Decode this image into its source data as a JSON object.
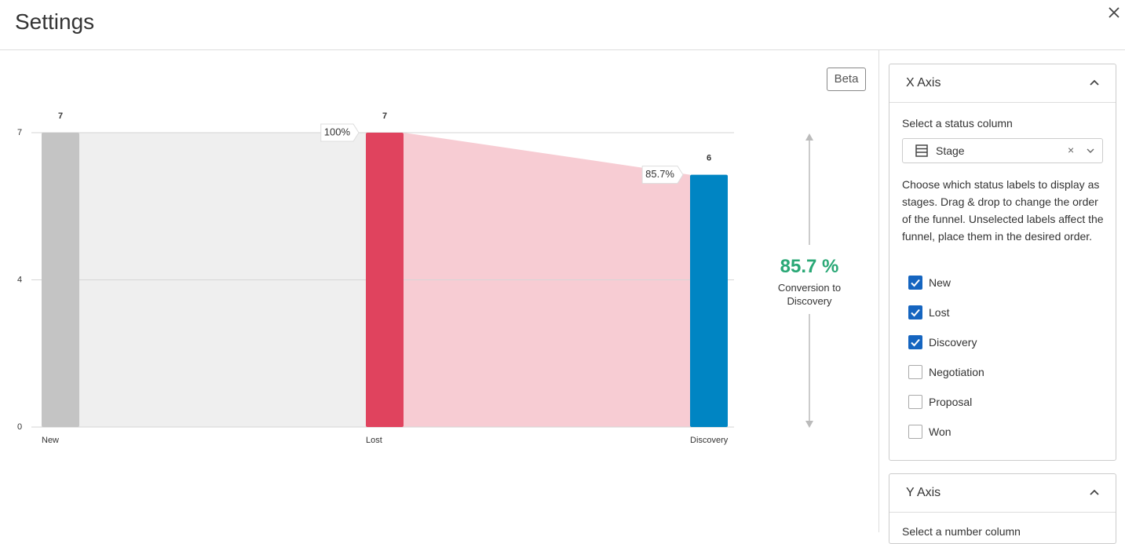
{
  "header": {
    "title": "Settings"
  },
  "badge": "Beta",
  "chart_data": {
    "type": "funnel",
    "categories": [
      "New",
      "Lost",
      "Discovery"
    ],
    "values": [
      7,
      7,
      6
    ],
    "colors": [
      "#c4c4c4",
      "#e0435e",
      "#0085c3"
    ],
    "conversions": [
      100,
      85.7
    ],
    "conversion_labels": [
      "100%",
      "85.7%"
    ],
    "ylim": [
      0,
      7
    ],
    "yticks": [
      0,
      {
        "value": 3.5,
        "label": "4"
      },
      7
    ],
    "grid": true
  },
  "summary": {
    "label": "85.7 %",
    "caption": "Conversion to Discovery"
  },
  "x_axis": {
    "title": "X Axis",
    "select_label": "Select a status column",
    "select_value": "Stage",
    "description": "Choose which status labels to display as stages. Drag & drop to change the order of the funnel. Unselected labels affect the funnel, place them in the desired order.",
    "options": [
      {
        "label": "New",
        "checked": true
      },
      {
        "label": "Lost",
        "checked": true
      },
      {
        "label": "Discovery",
        "checked": true
      },
      {
        "label": "Negotiation",
        "checked": false
      },
      {
        "label": "Proposal",
        "checked": false
      },
      {
        "label": "Won",
        "checked": false
      }
    ]
  },
  "y_axis": {
    "title": "Y Axis",
    "select_label": "Select a number column"
  }
}
